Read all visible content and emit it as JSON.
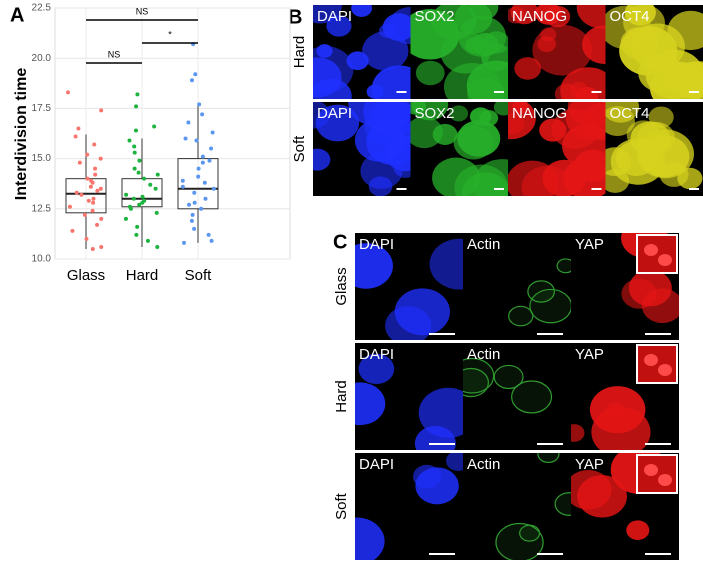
{
  "chart_data": {
    "type": "box",
    "panel_label": "A",
    "y_label": "Interdivision time",
    "ylim": [
      10.0,
      22.5
    ],
    "yticks": [
      {
        "value": 10,
        "label": "10.0"
      },
      {
        "value": 12.5,
        "label": "12.5"
      },
      {
        "value": 15,
        "label": "15.0"
      },
      {
        "value": 17.5,
        "label": "17.5"
      },
      {
        "value": 20,
        "label": "20.0"
      },
      {
        "value": 22.5,
        "label": "22.5"
      }
    ],
    "grid": true,
    "series": [
      {
        "name": "Glass",
        "color": "#f8766d",
        "whisker_low": 10.5,
        "q1": 12.3,
        "median": 13.25,
        "q3": 14.0,
        "whisker_high": 16.2,
        "points": [
          18.3,
          17.4,
          16.5,
          16.1,
          15.7,
          15.2,
          14.8,
          14.5,
          14.2,
          14.0,
          13.8,
          13.6,
          13.4,
          13.3,
          13.2,
          13.0,
          12.8,
          12.6,
          12.4,
          12.2,
          12.0,
          11.7,
          11.4,
          11.0,
          10.6,
          10.5,
          13.9,
          12.9,
          13.5,
          15.0
        ]
      },
      {
        "name": "Hard",
        "color": "#1db33f",
        "whisker_low": 10.6,
        "q1": 12.6,
        "median": 13.0,
        "q3": 14.0,
        "whisker_high": 16.0,
        "points": [
          18.2,
          17.6,
          16.6,
          16.4,
          15.9,
          15.3,
          14.9,
          14.5,
          14.2,
          14.0,
          13.7,
          13.5,
          13.2,
          13.0,
          12.9,
          12.8,
          12.7,
          12.5,
          12.3,
          12.0,
          11.6,
          11.2,
          10.9,
          10.6,
          13.1,
          12.6,
          14.3,
          15.6
        ]
      },
      {
        "name": "Soft",
        "color": "#5b97f0",
        "whisker_low": 10.8,
        "q1": 12.5,
        "median": 13.5,
        "q3": 15.0,
        "whisker_high": 17.7,
        "points": [
          20.7,
          19.2,
          18.9,
          17.7,
          17.2,
          16.8,
          16.3,
          15.9,
          15.5,
          15.1,
          14.8,
          14.5,
          14.1,
          13.8,
          13.5,
          13.3,
          13.0,
          12.7,
          12.5,
          12.2,
          11.9,
          11.5,
          11.2,
          10.9,
          10.8,
          14.9,
          13.6,
          12.8,
          16.0,
          13.9
        ]
      }
    ],
    "brackets": [
      {
        "label": "NS",
        "from": "Glass",
        "to": "Soft"
      },
      {
        "label": "NS",
        "from": "Glass",
        "to": "Hard"
      },
      {
        "label": "*",
        "from": "Hard",
        "to": "Soft"
      }
    ]
  },
  "panel_b": {
    "panel_label": "B",
    "rows": [
      "Hard",
      "Soft"
    ],
    "columns": [
      {
        "label": "DAPI",
        "color": "#1f30ff"
      },
      {
        "label": "SOX2",
        "color": "#27b02a"
      },
      {
        "label": "NANOG",
        "color": "#e41515"
      },
      {
        "label": "OCT4",
        "color": "#d6d21e"
      }
    ]
  },
  "panel_c": {
    "panel_label": "C",
    "rows": [
      "Glass",
      "Hard",
      "Soft"
    ],
    "columns": [
      {
        "label": "DAPI",
        "color": "#1f30ff"
      },
      {
        "label": "Actin",
        "color": "#2f9a2f"
      },
      {
        "label": "YAP",
        "color": "#e41515"
      }
    ]
  }
}
